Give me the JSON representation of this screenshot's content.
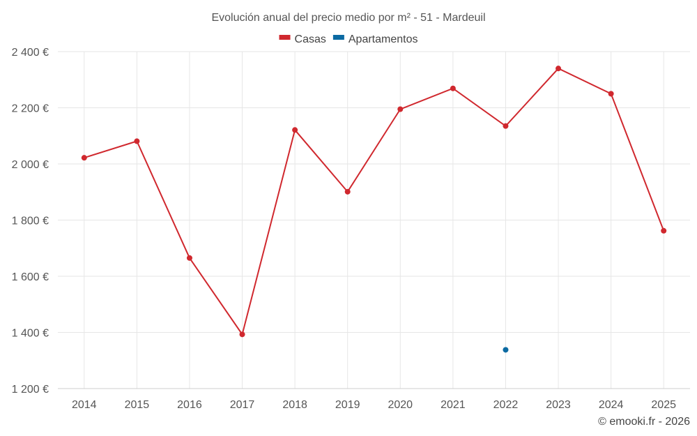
{
  "chart_data": {
    "type": "line",
    "title": "Evolución anual del precio medio por m² - 51 - Mardeuil",
    "categories": [
      "2014",
      "2015",
      "2016",
      "2017",
      "2018",
      "2019",
      "2020",
      "2021",
      "2022",
      "2023",
      "2024",
      "2025"
    ],
    "series": [
      {
        "name": "Casas",
        "color": "#d0282e",
        "values": [
          2022,
          2081,
          1665,
          1393,
          2121,
          1901,
          2195,
          2269,
          2135,
          2340,
          2250,
          1762
        ]
      },
      {
        "name": "Apartamentos",
        "color": "#0b6aa2",
        "values": [
          null,
          null,
          null,
          null,
          null,
          null,
          null,
          null,
          1338,
          null,
          null,
          null
        ]
      }
    ],
    "ylim": [
      1200,
      2400
    ],
    "yticks": [
      1200,
      1400,
      1600,
      1800,
      2000,
      2200,
      2400
    ],
    "ytick_labels": [
      "1 200 €",
      "1 400 €",
      "1 600 €",
      "1 800 €",
      "2 000 €",
      "2 200 €",
      "2 400 €"
    ],
    "xlabel": "",
    "ylabel": "",
    "grid": true,
    "legend_position": "top-center"
  },
  "credit": "© emooki.fr - 2026"
}
